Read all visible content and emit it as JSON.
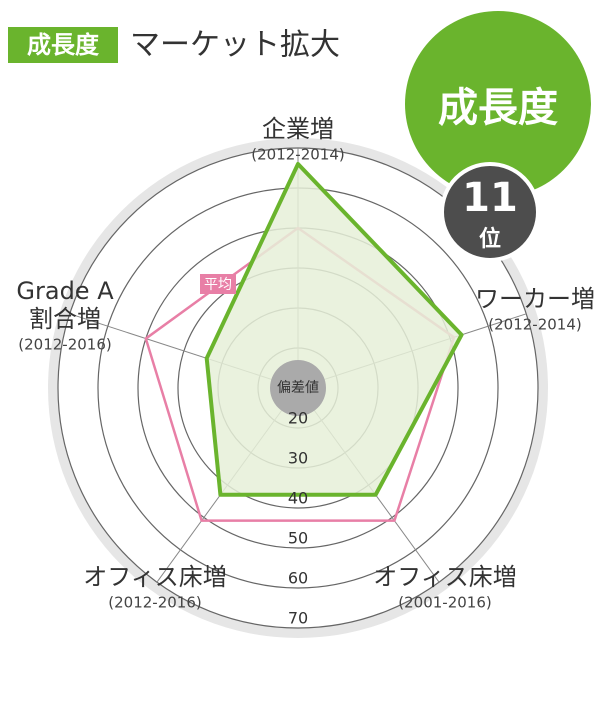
{
  "chart_data": {
    "type": "radar",
    "badge": "成長度",
    "title": "マーケット拡大",
    "rank": {
      "label": "成長度",
      "value": 11,
      "unit": "位"
    },
    "center_label": "偏差値",
    "axes": [
      {
        "name": [
          "企業増"
        ],
        "period": "(2012-2014)"
      },
      {
        "name": [
          "ワーカー増"
        ],
        "period": "(2012-2014)"
      },
      {
        "name": [
          "オフィス床増"
        ],
        "period": "(2001-2016)"
      },
      {
        "name": [
          "オフィス床増"
        ],
        "period": "(2012-2016)"
      },
      {
        "name": [
          "Grade A",
          "割合増"
        ],
        "period": "(2012-2016)"
      }
    ],
    "rlim": [
      10,
      70
    ],
    "rticks": [
      20,
      30,
      40,
      50,
      60,
      70
    ],
    "series": [
      {
        "name": "平均",
        "color": "#e87fa6",
        "values": [
          50,
          51,
          51,
          51,
          50
        ]
      },
      {
        "color": "#6ab42d",
        "fill": "#e6f0d8",
        "values": [
          66,
          53,
          43,
          43,
          34
        ]
      }
    ]
  }
}
